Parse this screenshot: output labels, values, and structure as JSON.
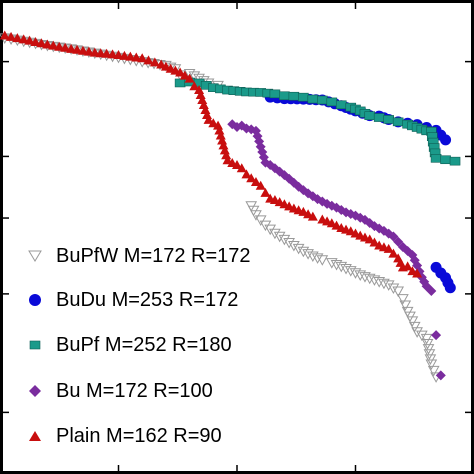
{
  "chart_data": {
    "type": "scatter",
    "title": "",
    "xlabel": "",
    "ylabel": "",
    "xlim": [
      0,
      100
    ],
    "ylim": [
      0,
      100
    ],
    "x_ticks": [
      0,
      25,
      50,
      75,
      100
    ],
    "y_ticks": [
      0,
      13,
      38,
      54,
      67,
      87,
      100
    ],
    "grid": false,
    "legend_position": "left",
    "series": [
      {
        "name": "BuPfW M=172 R=172",
        "marker": "triangle-down-open",
        "color": "#999999",
        "points": [
          [
            1,
            92
          ],
          [
            5,
            91.3
          ],
          [
            10,
            90.4
          ],
          [
            15,
            89.7
          ],
          [
            20,
            88.8
          ],
          [
            25,
            87.9
          ],
          [
            30,
            87
          ],
          [
            35,
            86.2
          ],
          [
            37,
            85.5
          ],
          [
            38,
            84.2
          ],
          [
            40,
            84.5
          ],
          [
            42,
            83.5
          ],
          [
            44,
            82.5
          ],
          [
            46,
            82
          ],
          [
            53,
            56.6
          ],
          [
            54,
            54.7
          ],
          [
            56,
            52.5
          ],
          [
            58,
            50.8
          ],
          [
            60,
            49.5
          ],
          [
            62,
            48.2
          ],
          [
            64,
            47
          ],
          [
            66,
            46
          ],
          [
            68,
            45.2
          ],
          [
            70,
            44.6
          ],
          [
            72,
            43.8
          ],
          [
            74,
            42.9
          ],
          [
            76,
            42
          ],
          [
            78,
            41.3
          ],
          [
            80,
            40.6
          ],
          [
            82,
            39.9
          ],
          [
            84,
            38.6
          ],
          [
            85,
            37
          ],
          [
            86,
            34.3
          ],
          [
            87,
            32.3
          ],
          [
            88,
            30
          ],
          [
            90,
            28.6
          ],
          [
            91,
            23.2
          ],
          [
            92,
            20.5
          ]
        ]
      },
      {
        "name": "BuDu M=253 R=172",
        "marker": "circle",
        "color": "#0a0ad8",
        "points": [
          [
            57,
            79.5
          ],
          [
            60,
            79.2
          ],
          [
            64,
            79.1
          ],
          [
            68,
            78.9
          ],
          [
            72,
            77.7
          ],
          [
            75,
            76.6
          ],
          [
            78,
            75.6
          ],
          [
            80,
            75.5
          ],
          [
            82,
            74.8
          ],
          [
            84,
            74.3
          ],
          [
            86,
            74
          ],
          [
            88,
            73.7
          ],
          [
            90,
            73.1
          ],
          [
            92,
            72.5
          ],
          [
            93,
            71.5
          ],
          [
            94,
            70.5
          ],
          [
            92,
            43.6
          ],
          [
            93,
            42.4
          ],
          [
            94,
            41.4
          ],
          [
            95,
            39.3
          ]
        ]
      },
      {
        "name": "BuPf M=252 R=180",
        "marker": "square",
        "color": "#1a9a8a",
        "points": [
          [
            38,
            82.5
          ],
          [
            40,
            82.7
          ],
          [
            42,
            82.5
          ],
          [
            45,
            81.5
          ],
          [
            48,
            81
          ],
          [
            52,
            80.6
          ],
          [
            55,
            80.5
          ],
          [
            58,
            80.2
          ],
          [
            60,
            79.8
          ],
          [
            62,
            79.7
          ],
          [
            64,
            79.5
          ],
          [
            66,
            79.1
          ],
          [
            68,
            78.9
          ],
          [
            70,
            78.5
          ],
          [
            72,
            77.9
          ],
          [
            74,
            77.4
          ],
          [
            76,
            76.6
          ],
          [
            78,
            75.6
          ],
          [
            80,
            75.2
          ],
          [
            82,
            74.8
          ],
          [
            84,
            74.3
          ],
          [
            86,
            73.8
          ],
          [
            88,
            73.1
          ],
          [
            90,
            72.4
          ],
          [
            91,
            72.3
          ],
          [
            92,
            66.6
          ],
          [
            94,
            66.3
          ],
          [
            96,
            66
          ]
        ]
      },
      {
        "name": "Bu M=172 R=100",
        "marker": "diamond",
        "color": "#7a2c9e",
        "points": [
          [
            49,
            73.8
          ],
          [
            50,
            73.2
          ],
          [
            51,
            73.5
          ],
          [
            52,
            72.9
          ],
          [
            53,
            72.7
          ],
          [
            54,
            72.4
          ],
          [
            56,
            65.7
          ],
          [
            57,
            65.2
          ],
          [
            59,
            63.8
          ],
          [
            61,
            62.3
          ],
          [
            63,
            60.6
          ],
          [
            65,
            59.2
          ],
          [
            67,
            58
          ],
          [
            69,
            57
          ],
          [
            71,
            56.2
          ],
          [
            73,
            55.2
          ],
          [
            75,
            54.5
          ],
          [
            77,
            53.6
          ],
          [
            79,
            52.3
          ],
          [
            81,
            51.3
          ],
          [
            83,
            50.1
          ],
          [
            85,
            47.9
          ],
          [
            87,
            46.2
          ],
          [
            88,
            44
          ],
          [
            89,
            41.5
          ],
          [
            90,
            39.6
          ],
          [
            91,
            38.6
          ],
          [
            92,
            29.3
          ],
          [
            93,
            20.8
          ]
        ]
      },
      {
        "name": "Plain M=162 R=90",
        "marker": "triangle-up",
        "color": "#c80e0e",
        "points": [
          [
            1,
            92.5
          ],
          [
            5,
            91.7
          ],
          [
            10,
            90.6
          ],
          [
            15,
            89.7
          ],
          [
            20,
            88.9
          ],
          [
            25,
            88.4
          ],
          [
            30,
            87.7
          ],
          [
            34,
            86.4
          ],
          [
            36,
            85.5
          ],
          [
            38,
            84.7
          ],
          [
            40,
            83.4
          ],
          [
            41,
            81.8
          ],
          [
            42,
            81
          ],
          [
            44,
            74.7
          ],
          [
            45,
            74
          ],
          [
            46,
            73.5
          ],
          [
            48,
            66.2
          ],
          [
            49,
            65.6
          ],
          [
            50,
            65.2
          ],
          [
            51,
            64.5
          ],
          [
            52,
            63.2
          ],
          [
            53,
            62.4
          ],
          [
            54,
            61.6
          ],
          [
            55,
            60.8
          ],
          [
            56,
            59.3
          ],
          [
            57,
            58.1
          ],
          [
            58,
            57.8
          ],
          [
            60,
            56.9
          ],
          [
            62,
            56
          ],
          [
            64,
            55.3
          ],
          [
            66,
            54.3
          ],
          [
            68,
            53.7
          ],
          [
            70,
            52.9
          ],
          [
            72,
            51.9
          ],
          [
            74,
            51.2
          ],
          [
            76,
            50.3
          ],
          [
            78,
            49.5
          ],
          [
            80,
            48.2
          ],
          [
            82,
            47.5
          ],
          [
            84,
            45.5
          ],
          [
            85,
            43.6
          ],
          [
            86,
            43.8
          ],
          [
            87,
            42.8
          ],
          [
            88,
            42.3
          ]
        ]
      }
    ]
  }
}
